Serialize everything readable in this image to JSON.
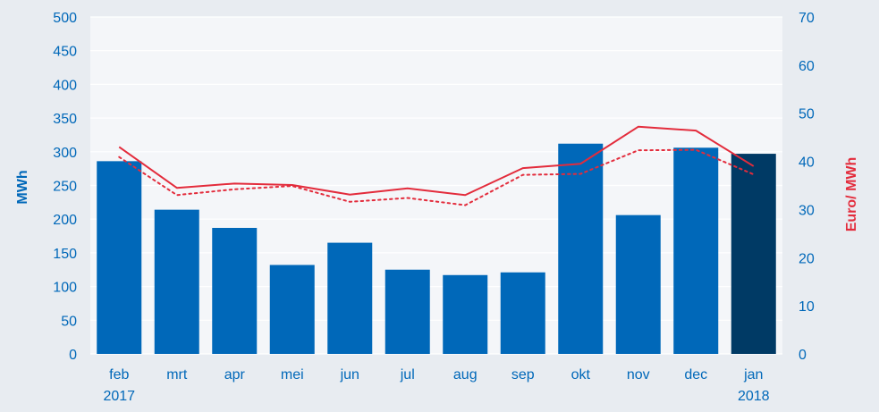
{
  "chart_data": {
    "type": "bar",
    "categories": [
      "feb\n2017",
      "mrt",
      "apr",
      "mei",
      "jun",
      "jul",
      "aug",
      "sep",
      "okt",
      "nov",
      "dec",
      "jan\n2018"
    ],
    "series": [
      {
        "type": "bar",
        "axis": "left",
        "values": [
          286,
          214,
          187,
          132,
          165,
          125,
          117,
          121,
          312,
          206,
          306,
          297
        ],
        "colors": [
          "#0068b9",
          "#0068b9",
          "#0068b9",
          "#0068b9",
          "#0068b9",
          "#0068b9",
          "#0068b9",
          "#0068b9",
          "#0068b9",
          "#0068b9",
          "#0068b9",
          "#003a65"
        ]
      },
      {
        "type": "line",
        "style": "solid",
        "axis": "right",
        "color": "#e32c3c",
        "values": [
          43.0,
          34.5,
          35.4,
          35.1,
          33.1,
          34.4,
          33.0,
          38.6,
          39.5,
          47.2,
          46.4,
          39.0
        ]
      },
      {
        "type": "line",
        "style": "dotted",
        "axis": "right",
        "color": "#e32c3c",
        "values": [
          40.9,
          33.0,
          34.2,
          34.9,
          31.6,
          32.4,
          30.9,
          37.2,
          37.4,
          42.3,
          42.4,
          37.3
        ]
      }
    ],
    "ylabel": "MWh",
    "ylim": [
      0,
      500
    ],
    "yticks": [
      0,
      50,
      100,
      150,
      200,
      250,
      300,
      350,
      400,
      450,
      500
    ],
    "y2label": "Euro/ MWh",
    "y2lim": [
      0,
      70
    ],
    "y2ticks": [
      0,
      10,
      20,
      30,
      40,
      50,
      60,
      70
    ],
    "grid": true,
    "colors": {
      "background": "#e8ecf1",
      "plot_area": "#f4f6f9",
      "gridline": "#ffffff",
      "tick_text": "#0068b9",
      "left_title": "#0068b9",
      "right_title": "#e32c3c"
    }
  }
}
